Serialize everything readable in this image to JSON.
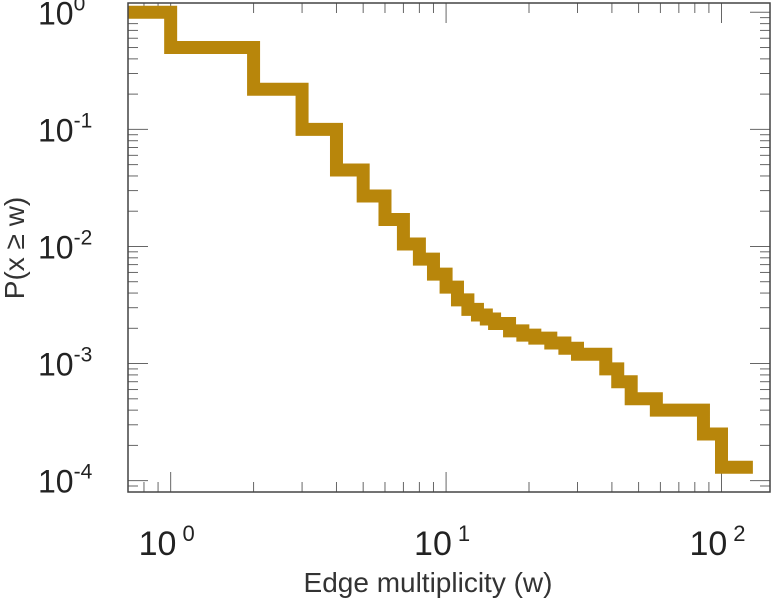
{
  "chart_data": {
    "type": "line",
    "step": true,
    "xlabel": "Edge multiplicity (w)",
    "ylabel": "P(x ≥ w)",
    "x_scale": "log",
    "y_scale": "log",
    "xlim": [
      0.7,
      150
    ],
    "ylim": [
      8e-05,
      1.2
    ],
    "grid": false,
    "x_ticks": [
      {
        "value": 1,
        "base": "10",
        "exp": "0"
      },
      {
        "value": 10,
        "base": "10",
        "exp": "1"
      },
      {
        "value": 100,
        "base": "10",
        "exp": "2"
      }
    ],
    "y_ticks": [
      {
        "value": 1,
        "base": "10",
        "exp": "0"
      },
      {
        "value": 0.1,
        "base": "10",
        "exp": "-1"
      },
      {
        "value": 0.01,
        "base": "10",
        "exp": "-2"
      },
      {
        "value": 0.001,
        "base": "10",
        "exp": "-3"
      },
      {
        "value": 0.0001,
        "base": "10",
        "exp": "-4"
      }
    ],
    "series": [
      {
        "color": "#b8860b",
        "x": [
          0.7,
          1,
          2,
          3,
          4,
          5,
          6,
          7,
          8,
          9,
          10,
          11,
          12,
          13,
          14,
          15,
          17,
          19,
          21,
          24,
          27,
          30,
          38,
          42,
          47,
          58,
          86,
          100,
          130
        ],
        "y": [
          1.0,
          0.5,
          0.22,
          0.1,
          0.045,
          0.027,
          0.017,
          0.0105,
          0.0078,
          0.0058,
          0.0045,
          0.0035,
          0.0029,
          0.0026,
          0.0024,
          0.0022,
          0.0019,
          0.00175,
          0.00165,
          0.0015,
          0.00135,
          0.0012,
          0.0009,
          0.0007,
          0.0005,
          0.0004,
          0.00025,
          0.00013,
          0.00013
        ]
      }
    ]
  }
}
